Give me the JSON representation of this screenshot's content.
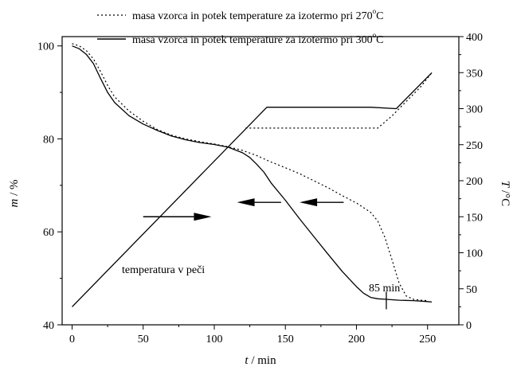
{
  "chart_data": {
    "type": "line",
    "title": "",
    "xlabel": {
      "italic": "t",
      "rest": " / min"
    },
    "ylabel_left": {
      "italic": "m",
      "rest": " / %"
    },
    "ylabel_right": {
      "italic": "T",
      "rest": " /°C"
    },
    "xlim": [
      -7,
      272
    ],
    "ylim_left": [
      40,
      102
    ],
    "ylim_right": [
      0,
      400
    ],
    "x_ticks": [
      0,
      50,
      100,
      150,
      200,
      250
    ],
    "y_left_ticks": [
      40,
      60,
      80,
      100
    ],
    "y_right_ticks": [
      0,
      50,
      100,
      150,
      200,
      250,
      300,
      350,
      400
    ],
    "grid": false,
    "legend_position": "top",
    "legend": [
      {
        "style": "dotted",
        "text": "masa vzorca in potek temperature za izotermo pri 270",
        "sup": "o",
        "tail": "C"
      },
      {
        "style": "solid",
        "text": "masa vzorca in potek temperature za izotermo pri 300",
        "sup": "o",
        "tail": "C"
      }
    ],
    "series": [
      {
        "name": "masa vzorca in potek temperature za izotermo pri 270°C",
        "axis": "left",
        "style": "dotted",
        "x": [
          0,
          5,
          10,
          15,
          20,
          25,
          30,
          40,
          50,
          60,
          70,
          80,
          90,
          100,
          110,
          120,
          130,
          140,
          150,
          160,
          170,
          180,
          190,
          200,
          210,
          215,
          220,
          225,
          230,
          235,
          240,
          245,
          250
        ],
        "y": [
          100.5,
          100,
          99,
          97.2,
          94.5,
          91.5,
          89,
          86,
          83.8,
          82,
          80.8,
          80,
          79.4,
          78.9,
          78.3,
          77.5,
          76.4,
          75,
          73.8,
          72.5,
          71,
          69.5,
          67.8,
          66.2,
          64.2,
          62.3,
          58.8,
          54,
          49,
          46.2,
          45.5,
          45.3,
          45.2
        ]
      },
      {
        "name": "masa vzorca in potek temperature za izotermo pri 300°C",
        "axis": "left",
        "style": "solid",
        "x": [
          0,
          5,
          10,
          15,
          20,
          25,
          30,
          40,
          50,
          60,
          70,
          80,
          90,
          100,
          110,
          120,
          125,
          130,
          135,
          140,
          150,
          160,
          170,
          180,
          190,
          200,
          205,
          210,
          215,
          220,
          225,
          230,
          240,
          250,
          253
        ],
        "y": [
          100,
          99.4,
          98.2,
          96.2,
          93,
          90,
          87.8,
          85,
          83.2,
          81.8,
          80.6,
          79.8,
          79.2,
          78.8,
          78.2,
          77,
          76,
          74.5,
          72.8,
          70.5,
          66.8,
          62.8,
          59,
          55.2,
          51.5,
          48.2,
          46.8,
          45.9,
          45.6,
          45.5,
          45.4,
          45.3,
          45.2,
          45,
          44.9
        ]
      },
      {
        "name": "T 270°C",
        "axis": "right",
        "style": "dotted",
        "x": [
          122,
          125,
          210,
          215,
          225,
          235,
          245,
          253
        ],
        "y": [
          273,
          273,
          273,
          273,
          290,
          310,
          330,
          350
        ]
      },
      {
        "name": "T 300°C",
        "axis": "right",
        "style": "solid",
        "x": [
          0,
          137,
          137,
          210,
          228,
          253
        ],
        "y": [
          25,
          302,
          302,
          302,
          300,
          350
        ]
      }
    ],
    "annotations": {
      "temperatura_label": "temperatura v peči",
      "min_label": "85 min",
      "min_marker_x": 221,
      "min_marker_y": 45.4
    },
    "arrows": [
      {
        "from": [
          50,
          150
        ],
        "to": [
          98,
          150
        ],
        "axis": "right"
      },
      {
        "from": [
          147,
          170
        ],
        "to": [
          116,
          170
        ],
        "axis": "right"
      },
      {
        "from": [
          191,
          170
        ],
        "to": [
          160,
          170
        ],
        "axis": "right"
      }
    ]
  }
}
